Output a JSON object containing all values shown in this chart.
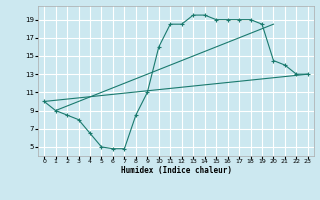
{
  "title": "",
  "xlabel": "Humidex (Indice chaleur)",
  "bg_color": "#cce8f0",
  "grid_color": "#ffffff",
  "line_color": "#1a7a6e",
  "line1_x": [
    0,
    1,
    2,
    3,
    4,
    5,
    6,
    7,
    8,
    9,
    10,
    11,
    12,
    13,
    14,
    15,
    16,
    17,
    18,
    19,
    20,
    21,
    22,
    23
  ],
  "line1_y": [
    10,
    9,
    8.5,
    8,
    6.5,
    5,
    4.8,
    4.8,
    8.5,
    11,
    16,
    18.5,
    18.5,
    19.5,
    19.5,
    19,
    19,
    19,
    19,
    18.5,
    14.5,
    14,
    13,
    13
  ],
  "line2_x": [
    0,
    23
  ],
  "line2_y": [
    10,
    13
  ],
  "line3_x": [
    1,
    20
  ],
  "line3_y": [
    9,
    18.5
  ],
  "xlim": [
    -0.5,
    23.5
  ],
  "ylim": [
    4,
    20.5
  ],
  "xticks": [
    0,
    1,
    2,
    3,
    4,
    5,
    6,
    7,
    8,
    9,
    10,
    11,
    12,
    13,
    14,
    15,
    16,
    17,
    18,
    19,
    20,
    21,
    22,
    23
  ],
  "yticks": [
    5,
    7,
    9,
    11,
    13,
    15,
    17,
    19
  ]
}
